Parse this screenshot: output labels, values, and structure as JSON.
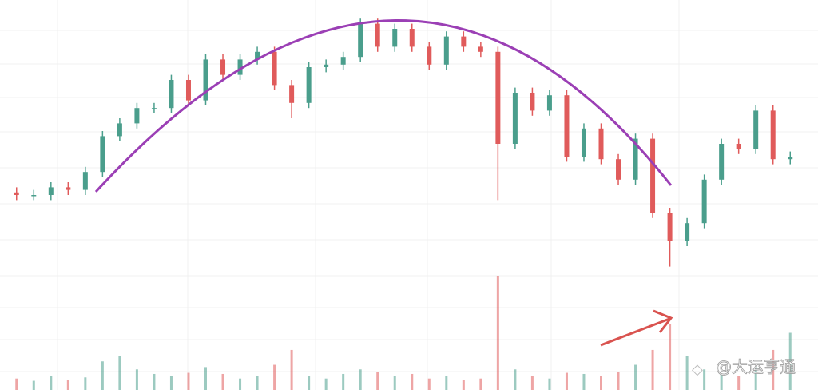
{
  "chart_data": {
    "type": "candlestick",
    "open": [
      31,
      30,
      30,
      33,
      32,
      39,
      53,
      58,
      64,
      64,
      75,
      67,
      83,
      77,
      83,
      86,
      73,
      66,
      80,
      81,
      84,
      97,
      88,
      95,
      88,
      81,
      92,
      88,
      86,
      50,
      70,
      63,
      69,
      45,
      56,
      44,
      36,
      52,
      23,
      12,
      19,
      36,
      50,
      48,
      63,
      44
    ],
    "high": [
      33,
      32,
      35,
      35,
      41,
      55,
      60,
      66,
      66,
      77,
      77,
      85,
      85,
      85,
      88,
      88,
      75,
      82,
      83,
      86,
      99,
      99,
      97,
      97,
      90,
      94,
      94,
      90,
      88,
      72,
      72,
      71,
      71,
      58,
      58,
      46,
      54,
      54,
      25,
      21,
      38,
      52,
      52,
      65,
      65,
      47
    ],
    "low": [
      28,
      28,
      28,
      30,
      30,
      37,
      51,
      56,
      62,
      62,
      65,
      65,
      75,
      75,
      81,
      71,
      60,
      64,
      78,
      79,
      82,
      86,
      86,
      86,
      79,
      79,
      86,
      84,
      28,
      48,
      61,
      61,
      43,
      43,
      42,
      34,
      34,
      21,
      2,
      10,
      17,
      34,
      46,
      46,
      42,
      42
    ],
    "close": [
      30,
      30,
      33,
      32,
      39,
      53,
      58,
      64,
      64,
      75,
      67,
      83,
      77,
      83,
      86,
      73,
      66,
      80,
      81,
      84,
      97,
      88,
      95,
      88,
      81,
      92,
      88,
      86,
      50,
      70,
      63,
      69,
      45,
      56,
      44,
      36,
      52,
      23,
      12,
      19,
      36,
      50,
      48,
      63,
      44,
      45
    ],
    "volume": [
      10,
      8,
      12,
      9,
      11,
      25,
      30,
      18,
      14,
      12,
      15,
      20,
      14,
      10,
      12,
      22,
      35,
      12,
      10,
      14,
      18,
      16,
      12,
      14,
      10,
      12,
      9,
      10,
      100,
      18,
      12,
      10,
      15,
      14,
      12,
      16,
      22,
      35,
      58,
      30,
      18,
      14,
      12,
      20,
      35,
      50
    ],
    "ylim": [
      0,
      100
    ],
    "y2lim": [
      0,
      100
    ],
    "up_color": "#4a9e8c",
    "down_color": "#e05b5b"
  },
  "watermark": "@大运亨通"
}
